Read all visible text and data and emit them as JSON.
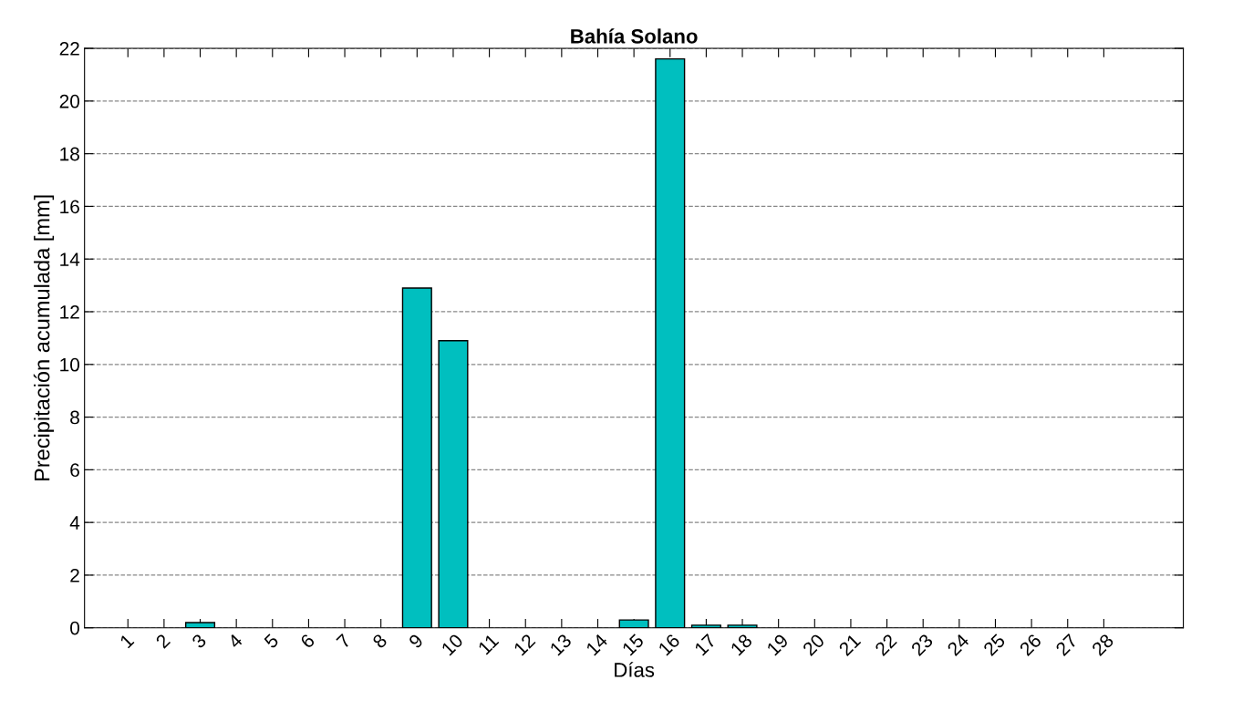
{
  "chart_data": {
    "type": "bar",
    "title": "Bahía Solano",
    "xlabel": "Días",
    "ylabel": "Precipitación acumulada [mm]",
    "x": [
      1,
      2,
      3,
      4,
      5,
      6,
      7,
      8,
      9,
      10,
      11,
      12,
      13,
      14,
      15,
      16,
      17,
      18,
      19,
      20,
      21,
      22,
      23,
      24,
      25,
      26,
      27,
      28
    ],
    "values": [
      0,
      0,
      0.2,
      0,
      0,
      0,
      0,
      0,
      12.9,
      10.9,
      0,
      0,
      0,
      0,
      0.3,
      21.6,
      0.1,
      0.1,
      0,
      0,
      0,
      0,
      0,
      0,
      0,
      0,
      0,
      0
    ],
    "color": "#00bfbf",
    "xlim": [
      -0.2,
      30.2
    ],
    "xticks": [
      1,
      2,
      3,
      4,
      5,
      6,
      7,
      8,
      9,
      10,
      11,
      12,
      13,
      14,
      15,
      16,
      17,
      18,
      19,
      20,
      21,
      22,
      23,
      24,
      25,
      26,
      27,
      28
    ],
    "ylim": [
      0,
      22
    ],
    "yticks": [
      0,
      2,
      4,
      6,
      8,
      10,
      12,
      14,
      16,
      18,
      20,
      22
    ],
    "grid": "y"
  }
}
